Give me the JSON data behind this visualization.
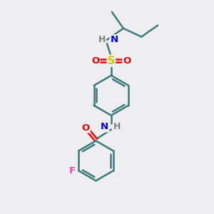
{
  "background_color": "#eeeef0",
  "bond_color": "#3d7a7a",
  "bond_width": 1.8,
  "atom_colors": {
    "N": "#0000ee",
    "O": "#ee0000",
    "S": "#cccc00",
    "F": "#ee44aa",
    "C": "#3d7a7a",
    "H": "#808080"
  },
  "figsize": [
    3.0,
    3.0
  ],
  "dpi": 100
}
